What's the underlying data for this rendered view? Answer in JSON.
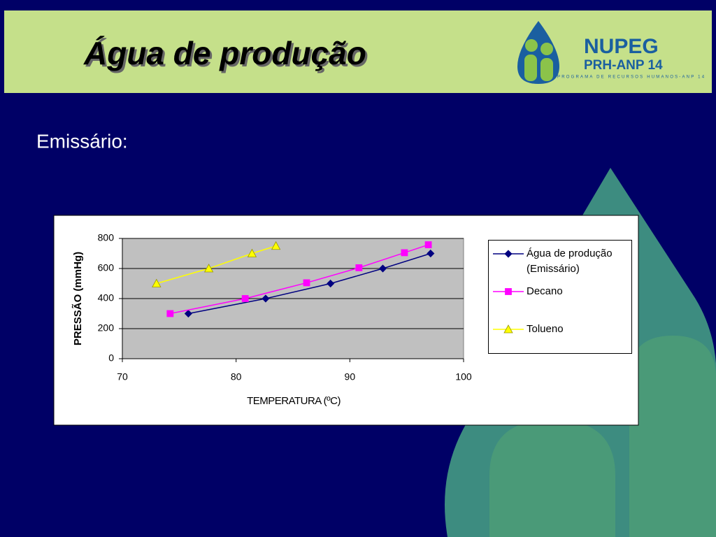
{
  "slide": {
    "title": "Água de produção",
    "subtitle": "Emissário:"
  },
  "logo": {
    "name": "NUPEG",
    "program": "PRH-ANP 14",
    "tagline": "PROGRAMA DE RECURSOS HUMANOS-ANP 14"
  },
  "chart_data": {
    "type": "line",
    "xlabel": "TEMPERATURA (ºC)",
    "ylabel": "PRESSÃO (mmHg)",
    "xlim": [
      70,
      100
    ],
    "xticks": [
      70,
      80,
      90,
      100
    ],
    "ylim": [
      0,
      800
    ],
    "yticks": [
      0,
      200,
      400,
      600,
      800
    ],
    "grid": true,
    "legend": "right",
    "series": [
      {
        "name": "Água de produção (Emissário)",
        "color": "#000080",
        "marker": "diamond",
        "x": [
          75.8,
          82.6,
          88.3,
          92.9,
          97.1
        ],
        "values": [
          300,
          400,
          500,
          600,
          700
        ]
      },
      {
        "name": "Decano",
        "color": "#ff00ff",
        "marker": "square",
        "x": [
          74.2,
          80.8,
          86.2,
          90.8,
          94.8,
          96.9
        ],
        "values": [
          300,
          400,
          505,
          605,
          705,
          758
        ]
      },
      {
        "name": "Tolueno",
        "color": "#ffff00",
        "marker": "triangle",
        "x": [
          73.0,
          77.6,
          81.4,
          83.5
        ],
        "values": [
          500,
          600,
          700,
          750
        ]
      }
    ]
  }
}
